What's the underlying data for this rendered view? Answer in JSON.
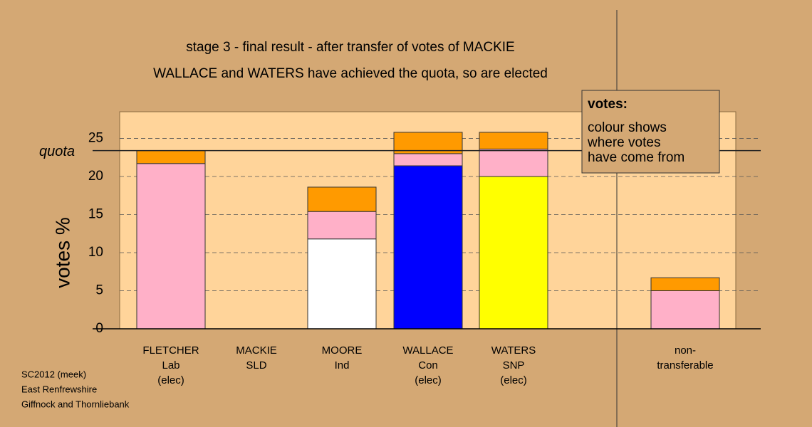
{
  "chart_data": {
    "type": "stacked_bar",
    "title": "stage 3 - final result - after transfer of votes of MACKIE",
    "subtitle": "WALLACE and WATERS have achieved the quota, so are elected",
    "ylabel": "votes %",
    "categories": [
      [
        "FLETCHER",
        "Lab",
        "(elec)"
      ],
      [
        "MACKIE",
        "SLD"
      ],
      [
        "MOORE",
        "Ind"
      ],
      [
        "WALLACE",
        "Con",
        "(elec)"
      ],
      [
        "WATERS",
        "SNP",
        "(elec)"
      ],
      [
        "non-",
        "transferable"
      ]
    ],
    "series": [
      {
        "colors": [
          "#ffb0c8",
          "#ffffff",
          "#ffffff",
          "#0000ff",
          "#ffff00",
          "#ffb0c8"
        ],
        "values": [
          21.7,
          null,
          11.8,
          21.4,
          20.0,
          5.0
        ]
      },
      {
        "color": "#ffb0c8",
        "values": [
          null,
          null,
          3.6,
          1.6,
          3.6,
          null
        ]
      },
      {
        "color": "#ff9a00",
        "values": [
          1.7,
          null,
          3.2,
          2.8,
          2.2,
          1.7
        ]
      }
    ],
    "separator_before": 5,
    "quota": 23.4,
    "quota_label": "quota",
    "ylim": [
      0,
      28.5
    ],
    "yticks": [
      0,
      5,
      10,
      15,
      20,
      25
    ],
    "grid": true,
    "legend": {
      "title": "votes:",
      "lines": [
        "colour shows",
        "where votes",
        "have come from"
      ]
    },
    "footer": [
      "SC2012 (meek)",
      "East Renfrewshire",
      "Giffnock and Thornliebank"
    ]
  }
}
